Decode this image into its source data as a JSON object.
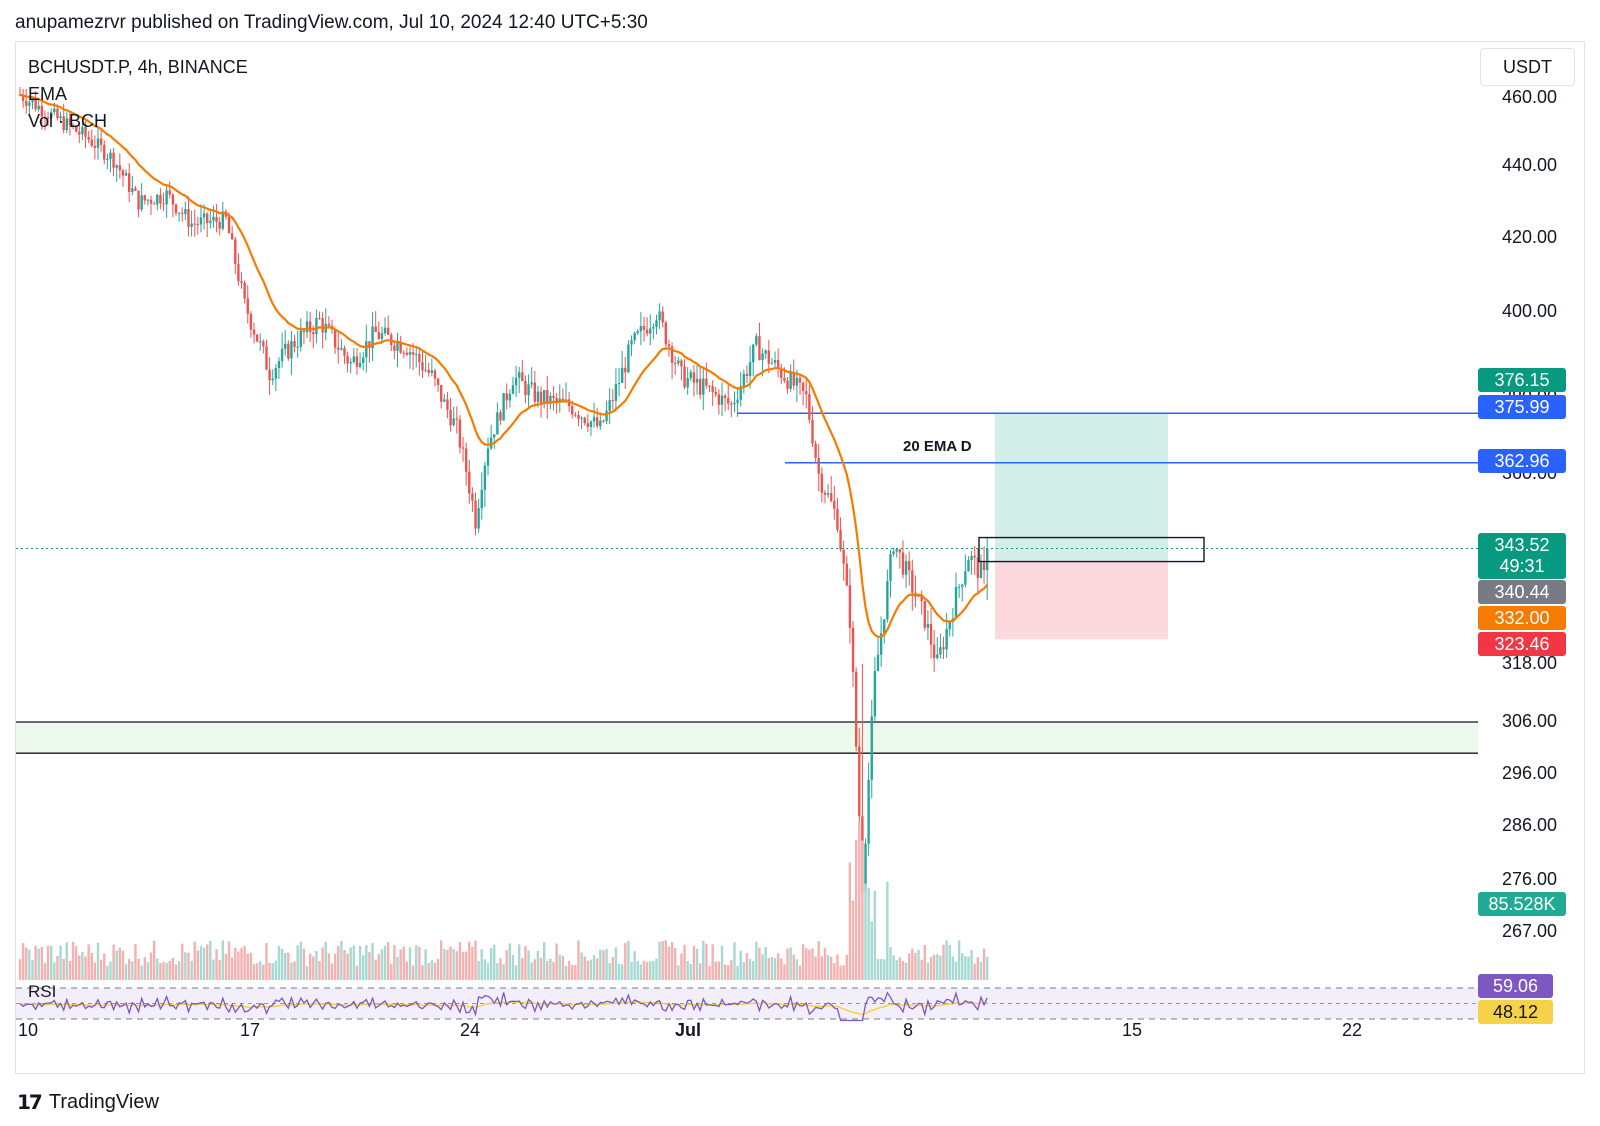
{
  "header": {
    "publish_line": "anupamezrvr published on TradingView.com, Jul 10, 2024 12:40 UTC+5:30"
  },
  "legend": {
    "symbol": "BCHUSDT.P, 4h, BINANCE",
    "ema": "EMA",
    "volume": "Vol · BCH"
  },
  "currency_button": "USDT",
  "annotation": "20 EMA D",
  "footer": {
    "brand": "TradingView"
  },
  "colors": {
    "up": "#26a69a",
    "down": "#ef5350",
    "ema": "#f57c00",
    "hline": "#2962ff",
    "profit_zone": "#d4efe9",
    "loss_zone": "#fbd9dc",
    "support_zone": "#eef9ee",
    "rsi_line": "#7e57c2",
    "rsi_ma": "#f5d247"
  },
  "chart_data": [
    {
      "type": "candlestick",
      "title": "BCHUSDT.P, 4h, BINANCE",
      "x_ticks": [
        "10",
        "17",
        "24",
        "Jul",
        "8",
        "15",
        "22"
      ],
      "y_ticks": [
        "460.00",
        "440.00",
        "420.00",
        "400.00",
        "380.00",
        "360.00",
        "318.00",
        "306.00",
        "296.00",
        "286.00",
        "276.00",
        "267.00"
      ],
      "price_tags": [
        {
          "value": "376.15",
          "color": "#089981"
        },
        {
          "value": "375.99",
          "color": "#2962ff"
        },
        {
          "value": "362.96",
          "color": "#2962ff"
        },
        {
          "value": "343.52",
          "sub": "49:31",
          "color": "#089981"
        },
        {
          "value": "340.44",
          "color": "#787b86"
        },
        {
          "value": "332.00",
          "color": "#f57c00"
        },
        {
          "value": "323.46",
          "color": "#f23645"
        },
        {
          "value": "85.528K",
          "color": "#22ab94"
        }
      ],
      "horizontal_levels": [
        375.99,
        362.96
      ],
      "support_zone": [
        300,
        306
      ],
      "long_position": {
        "entry": 343.52,
        "target": 375.99,
        "stop": 323.46
      },
      "last_price": 343.52,
      "ema_last": 332.0,
      "volume_last": "85.528K"
    },
    {
      "type": "line",
      "title": "RSI",
      "rsi_values": [
        "59.06",
        "48.12"
      ],
      "levels": [
        70,
        50,
        30
      ]
    }
  ]
}
